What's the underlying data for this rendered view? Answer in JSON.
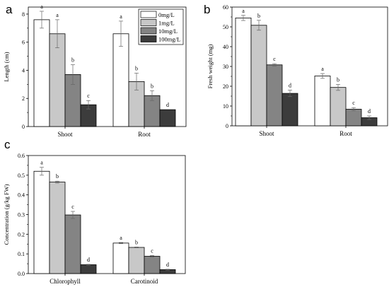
{
  "legend": {
    "entries": [
      "0mg/L",
      "1mg/L",
      "10mg/L",
      "100mg/L"
    ],
    "colors": [
      "#ffffff",
      "#c8c8c8",
      "#848484",
      "#3c3c3c"
    ]
  },
  "chart_data": [
    {
      "panel_label": "a",
      "type": "bar",
      "categories": [
        "Shoot",
        "Root"
      ],
      "series": [
        {
          "name": "0mg/L",
          "values": [
            7.6,
            6.6
          ],
          "errors": [
            0.6,
            0.9
          ],
          "letters": [
            "a",
            "a"
          ]
        },
        {
          "name": "1mg/L",
          "values": [
            6.6,
            3.2
          ],
          "errors": [
            1.0,
            0.6
          ],
          "letters": [
            "a",
            "b"
          ]
        },
        {
          "name": "10mg/L",
          "values": [
            3.7,
            2.2
          ],
          "errors": [
            0.7,
            0.35
          ],
          "letters": [
            "b",
            "b"
          ]
        },
        {
          "name": "100mg/L",
          "values": [
            1.55,
            1.2
          ],
          "errors": [
            0.3,
            0.0
          ],
          "letters": [
            "c",
            "d"
          ]
        }
      ],
      "ylabel": "Length (cm)",
      "ylim": [
        0,
        8.5
      ],
      "yticks": [
        0,
        2,
        4,
        6,
        8
      ],
      "legend_position": "top-right"
    },
    {
      "panel_label": "b",
      "type": "bar",
      "categories": [
        "Shoot",
        "Root"
      ],
      "series": [
        {
          "name": "0mg/L",
          "values": [
            54.5,
            25.2
          ],
          "errors": [
            1.3,
            1.2
          ],
          "letters": [
            "a",
            "a"
          ]
        },
        {
          "name": "1mg/L",
          "values": [
            50.8,
            19.4
          ],
          "errors": [
            2.5,
            1.5
          ],
          "letters": [
            "b",
            "b"
          ]
        },
        {
          "name": "10mg/L",
          "values": [
            30.8,
            8.4
          ],
          "errors": [
            0.6,
            0.8
          ],
          "letters": [
            "c",
            "c"
          ]
        },
        {
          "name": "100mg/L",
          "values": [
            16.4,
            4.1
          ],
          "errors": [
            1.6,
            0.9
          ],
          "letters": [
            "d",
            "d"
          ]
        }
      ],
      "ylabel": "Fresh weight (mg)",
      "ylim": [
        0,
        60
      ],
      "yticks": [
        0,
        10,
        20,
        30,
        40,
        50,
        60
      ]
    },
    {
      "panel_label": "c",
      "type": "bar",
      "categories": [
        "Chlorophyll",
        "Carotinoid"
      ],
      "series": [
        {
          "name": "0mg/L",
          "values": [
            0.52,
            0.155
          ],
          "errors": [
            0.02,
            0.003
          ],
          "letters": [
            "a",
            "a"
          ]
        },
        {
          "name": "1mg/L",
          "values": [
            0.465,
            0.133
          ],
          "errors": [
            0.005,
            0.002
          ],
          "letters": [
            "b",
            "b"
          ]
        },
        {
          "name": "10mg/L",
          "values": [
            0.298,
            0.088
          ],
          "errors": [
            0.018,
            0.004
          ],
          "letters": [
            "c",
            "c"
          ]
        },
        {
          "name": "100mg/L",
          "values": [
            0.045,
            0.02
          ],
          "errors": [
            0.002,
            0.002
          ],
          "letters": [
            "d",
            "d"
          ]
        }
      ],
      "ylabel": "Concentration (g/kg FW)",
      "ylim": [
        0,
        0.6
      ],
      "yticks": [
        "0.0",
        "0.1",
        "0.2",
        "0.3",
        "0.4",
        "0.5",
        "0.6"
      ]
    }
  ]
}
